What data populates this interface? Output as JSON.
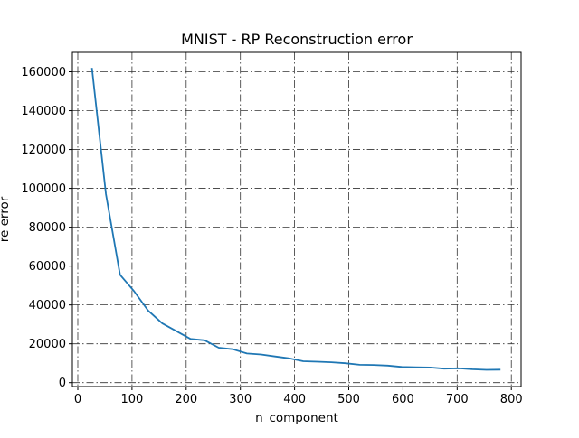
{
  "chart_data": {
    "type": "line",
    "title": "MNIST - RP Reconstruction error",
    "xlabel": "n_component",
    "ylabel": "re error",
    "xlim": [
      -10,
      818
    ],
    "ylim": [
      -2000,
      170000
    ],
    "xticks": [
      0,
      100,
      200,
      300,
      400,
      500,
      600,
      700,
      800
    ],
    "yticks": [
      0,
      20000,
      40000,
      60000,
      80000,
      100000,
      120000,
      140000,
      160000
    ],
    "xtick_labels": [
      "0",
      "100",
      "200",
      "300",
      "400",
      "500",
      "600",
      "700",
      "800"
    ],
    "ytick_labels": [
      "0",
      "20000",
      "40000",
      "60000",
      "80000",
      "100000",
      "120000",
      "140000",
      "160000"
    ],
    "grid": true,
    "grid_style": "dashdot",
    "series": [
      {
        "color": "#1f77b4",
        "x": [
          26,
          52,
          78,
          104,
          130,
          156,
          182,
          208,
          234,
          260,
          286,
          312,
          338,
          364,
          390,
          416,
          442,
          468,
          494,
          520,
          546,
          572,
          598,
          624,
          650,
          676,
          702,
          728,
          754,
          780
        ],
        "y": [
          162000,
          97000,
          55500,
          47000,
          37000,
          30500,
          26500,
          22500,
          21800,
          18000,
          17200,
          15000,
          14500,
          13500,
          12500,
          11000,
          10800,
          10500,
          10000,
          9200,
          9100,
          8800,
          8100,
          7900,
          7800,
          7200,
          7400,
          6900,
          6600,
          6700
        ]
      }
    ]
  }
}
